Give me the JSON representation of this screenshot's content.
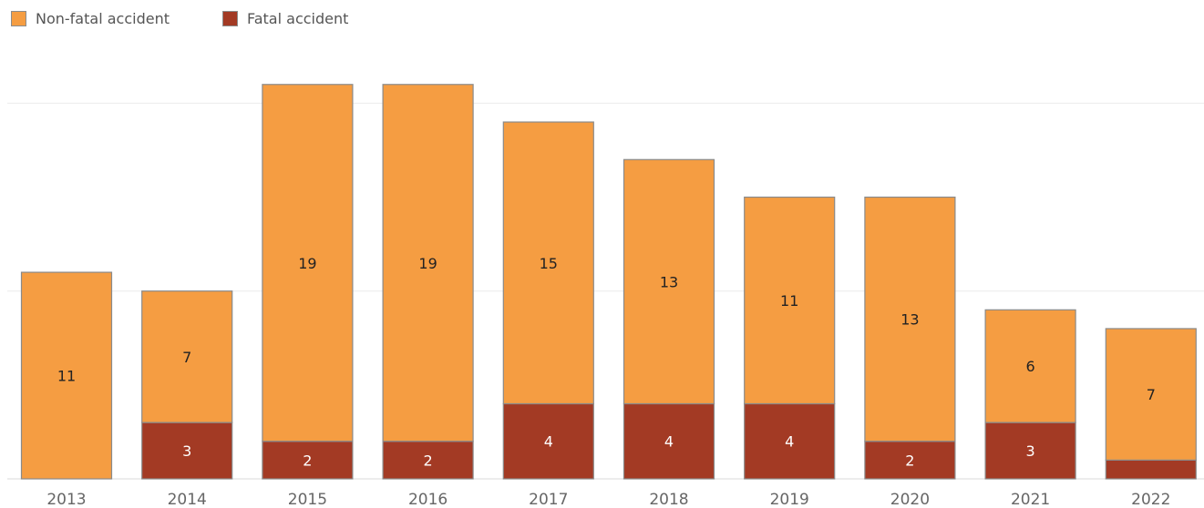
{
  "chart_data": {
    "type": "bar",
    "stacked": true,
    "categories": [
      "2013",
      "2014",
      "2015",
      "2016",
      "2017",
      "2018",
      "2019",
      "2020",
      "2021",
      "2022"
    ],
    "series": [
      {
        "name": "Fatal accident",
        "color": "#a33a24",
        "values": [
          0,
          3,
          2,
          2,
          4,
          4,
          4,
          2,
          3,
          1
        ],
        "labels": [
          "",
          "3",
          "2",
          "2",
          "4",
          "4",
          "4",
          "2",
          "3",
          ""
        ]
      },
      {
        "name": "Non-fatal accident",
        "color": "#f59d42",
        "values": [
          11,
          7,
          19,
          19,
          15,
          13,
          11,
          13,
          6,
          7
        ],
        "labels": [
          "11",
          "7",
          "19",
          "19",
          "15",
          "13",
          "11",
          "13",
          "6",
          "7"
        ]
      }
    ],
    "ylim": [
      0,
      21.2
    ],
    "gridlines": [
      0,
      10,
      20
    ],
    "grid": true,
    "legend_position": "top-left",
    "title": "",
    "xlabel": "",
    "ylabel": ""
  }
}
